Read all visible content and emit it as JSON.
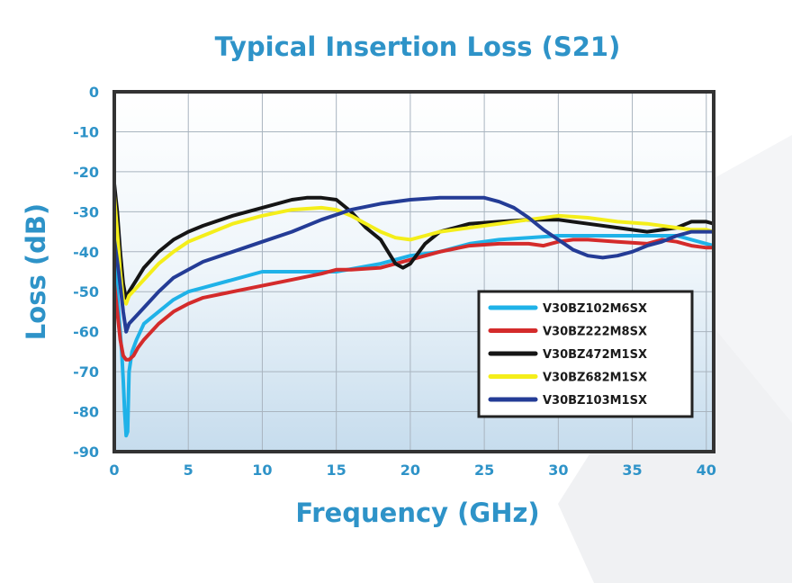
{
  "chart_data": {
    "type": "line",
    "title": "Typical Insertion Loss (S21)",
    "xlabel": "Frequency (GHz)",
    "ylabel": "Loss (dB)",
    "xlim": [
      0,
      40.5
    ],
    "ylim": [
      -90,
      0
    ],
    "xticks": [
      "0",
      "5",
      "10",
      "15",
      "20",
      "25",
      "30",
      "35",
      "40"
    ],
    "xtick_values": [
      0,
      5,
      10,
      15,
      20,
      25,
      30,
      35,
      40
    ],
    "yticks": [
      "0",
      "-10",
      "-20",
      "-30",
      "-40",
      "-50",
      "-60",
      "-70",
      "-80",
      "-90"
    ],
    "ytick_values": [
      0,
      -10,
      -20,
      -30,
      -40,
      -50,
      -60,
      -70,
      -80,
      -90
    ],
    "grid": true,
    "legend_position": "right",
    "series": [
      {
        "name": "V30BZ102M6SX",
        "color": "#1fb2e8",
        "x": [
          0,
          0.3,
          0.5,
          0.6,
          0.7,
          0.8,
          0.9,
          1.0,
          1.2,
          1.5,
          2,
          3,
          4,
          5,
          6,
          8,
          10,
          12,
          15,
          18,
          20,
          22,
          24,
          26,
          28,
          30,
          32,
          34,
          36,
          38,
          39,
          40,
          40.5
        ],
        "y": [
          -40,
          -55,
          -65,
          -72,
          -80,
          -86,
          -85,
          -70,
          -65,
          -62,
          -58,
          -55,
          -52,
          -50,
          -49,
          -47,
          -45,
          -45,
          -45,
          -43,
          -41,
          -40,
          -38,
          -37,
          -36.5,
          -36,
          -36,
          -36,
          -36,
          -36,
          -37,
          -38,
          -38.5
        ]
      },
      {
        "name": "V30BZ222M8SX",
        "color": "#d42b2b",
        "x": [
          0,
          0.2,
          0.4,
          0.6,
          0.8,
          1.0,
          1.3,
          1.6,
          2,
          3,
          4,
          5,
          6,
          8,
          10,
          12,
          14,
          15,
          16,
          18,
          20,
          22,
          24,
          26,
          28,
          29,
          30,
          31,
          32,
          34,
          36,
          37,
          38,
          39,
          40,
          40.5
        ],
        "y": [
          -48,
          -55,
          -62,
          -66,
          -67,
          -67,
          -66,
          -64,
          -62,
          -58,
          -55,
          -53,
          -51.5,
          -50,
          -48.5,
          -47,
          -45.5,
          -44.5,
          -44.5,
          -44,
          -42,
          -40,
          -38.5,
          -38,
          -38,
          -38.5,
          -37.5,
          -37,
          -37,
          -37.5,
          -38,
          -37,
          -37.5,
          -38.5,
          -39,
          -39
        ]
      },
      {
        "name": "V30BZ472M1SX",
        "color": "#151515",
        "x": [
          0,
          0.2,
          0.4,
          0.6,
          0.8,
          1.0,
          1.5,
          2,
          3,
          4,
          5,
          6,
          8,
          10,
          12,
          13,
          14,
          15,
          16,
          17,
          18,
          18.5,
          19,
          19.5,
          20,
          21,
          22,
          24,
          26,
          28,
          30,
          32,
          34,
          36,
          38,
          39,
          40,
          40.5
        ],
        "y": [
          -23,
          -30,
          -40,
          -48,
          -52,
          -50,
          -47,
          -44,
          -40,
          -37,
          -35,
          -33.5,
          -31,
          -29,
          -27,
          -26.5,
          -26.5,
          -27,
          -30,
          -34,
          -37,
          -40,
          -43,
          -44,
          -43,
          -38,
          -35,
          -33,
          -32.5,
          -32,
          -32,
          -33,
          -34,
          -35,
          -34,
          -32.5,
          -32.5,
          -33
        ]
      },
      {
        "name": "V30BZ682M1SX",
        "color": "#f4ee1a",
        "x": [
          0,
          0.2,
          0.4,
          0.6,
          0.8,
          1.0,
          1.5,
          2,
          3,
          4,
          5,
          6,
          8,
          10,
          12,
          14,
          15,
          16,
          17,
          18,
          19,
          20,
          21,
          22,
          24,
          26,
          28,
          30,
          32,
          34,
          36,
          38,
          39,
          40,
          40.5
        ],
        "y": [
          -26,
          -35,
          -45,
          -52,
          -53,
          -51,
          -49,
          -47,
          -43,
          -40,
          -37.5,
          -36,
          -33,
          -31,
          -29.5,
          -29,
          -29.5,
          -31,
          -33,
          -35,
          -36.5,
          -37,
          -36,
          -35,
          -34,
          -33,
          -32,
          -31,
          -31.5,
          -32.5,
          -33,
          -34,
          -34.5,
          -34.5,
          -35
        ]
      },
      {
        "name": "V30BZ103M1SX",
        "color": "#243c96",
        "x": [
          0,
          0.3,
          0.6,
          0.8,
          1.0,
          1.5,
          2,
          3,
          4,
          5,
          6,
          8,
          10,
          12,
          14,
          16,
          18,
          20,
          22,
          24,
          25,
          26,
          27,
          28,
          29,
          30,
          31,
          32,
          33,
          34,
          35,
          36,
          37,
          38,
          39,
          40,
          40.5
        ],
        "y": [
          -37,
          -45,
          -55,
          -60,
          -58,
          -56,
          -54,
          -50,
          -46.5,
          -44.5,
          -42.5,
          -40,
          -37.5,
          -35,
          -32,
          -29.5,
          -28,
          -27,
          -26.5,
          -26.5,
          -26.5,
          -27.5,
          -29,
          -31.5,
          -34.5,
          -37,
          -39.5,
          -41,
          -41.5,
          -41,
          -40,
          -38.5,
          -37.5,
          -36,
          -35,
          -35,
          -35
        ]
      }
    ]
  }
}
